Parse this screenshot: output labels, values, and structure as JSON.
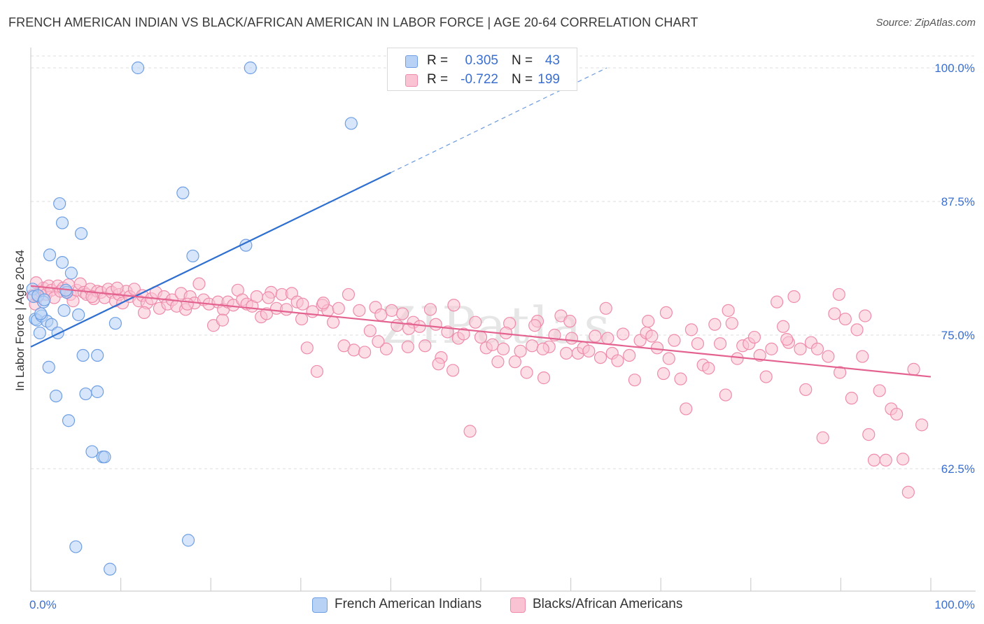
{
  "title": "FRENCH AMERICAN INDIAN VS BLACK/AFRICAN AMERICAN IN LABOR FORCE | AGE 20-64 CORRELATION CHART",
  "source": "Source: ZipAtlas.com",
  "watermark": "ZIPatlas",
  "colors": {
    "blue_fill": "#b7d2f5",
    "blue_stroke": "#6f9fe3",
    "blue_line": "#2e6fd0",
    "pink_fill": "#f9c3d3",
    "pink_stroke": "#ee8cab",
    "pink_line": "#e3628f",
    "tick_text": "#3a6fd1",
    "grid": "#dcdcdc"
  },
  "legend_top": {
    "rows": [
      {
        "r_label": "R =",
        "r_value": "0.305",
        "n_label": "N =",
        "n_value": "43",
        "color": "#b7d2f5",
        "border": "#6f9fe3"
      },
      {
        "r_label": "R =",
        "r_value": "-0.722",
        "n_label": "N =",
        "n_value": "199",
        "color": "#f9c3d3",
        "border": "#ee8cab"
      }
    ]
  },
  "legend_bottom": [
    {
      "label": "French American Indians",
      "color": "#b7d2f5",
      "border": "#6f9fe3"
    },
    {
      "label": "Blacks/African Americans",
      "color": "#f9c3d3",
      "border": "#ee8cab"
    }
  ],
  "chart_data": {
    "type": "scatter",
    "title": "FRENCH AMERICAN INDIAN VS BLACK/AFRICAN AMERICAN IN LABOR FORCE | AGE 20-64 CORRELATION CHART",
    "xlabel": "",
    "ylabel": "In Labor Force | Age 20-64",
    "xlim": [
      0,
      100
    ],
    "ylim": [
      50,
      101
    ],
    "x_tick_labels": [
      "0.0%",
      "100.0%"
    ],
    "y_ticks": [
      62.5,
      75.0,
      87.5,
      100.0
    ],
    "y_tick_labels": [
      "62.5%",
      "75.0%",
      "87.5%",
      "100.0%"
    ],
    "grid": true,
    "legend_placement": "top-center",
    "series": [
      {
        "name": "French American Indians",
        "r": 0.305,
        "n": 43,
        "trend": {
          "x0": 0,
          "y0": 73.9,
          "x1": 40,
          "y1": 90.2,
          "dash_to_x": 64,
          "dash_to_y": 100.0
        },
        "points": [
          [
            0.2,
            79.3
          ],
          [
            0.3,
            78.6
          ],
          [
            0.5,
            76.5
          ],
          [
            0.7,
            76.4
          ],
          [
            0.8,
            78.7
          ],
          [
            1.0,
            75.2
          ],
          [
            1.2,
            76.8
          ],
          [
            1.4,
            78.1
          ],
          [
            1.5,
            78.3
          ],
          [
            1.8,
            76.3
          ],
          [
            2.0,
            72.0
          ],
          [
            2.1,
            82.5
          ],
          [
            2.3,
            76.0
          ],
          [
            2.8,
            69.3
          ],
          [
            3.0,
            75.2
          ],
          [
            3.2,
            87.3
          ],
          [
            3.5,
            85.5
          ],
          [
            3.5,
            81.8
          ],
          [
            3.7,
            77.3
          ],
          [
            4.0,
            79.0
          ],
          [
            4.2,
            67.0
          ],
          [
            4.5,
            80.8
          ],
          [
            5.0,
            55.2
          ],
          [
            5.3,
            76.9
          ],
          [
            5.6,
            84.5
          ],
          [
            5.8,
            73.1
          ],
          [
            6.1,
            69.5
          ],
          [
            6.8,
            64.1
          ],
          [
            7.4,
            73.1
          ],
          [
            7.4,
            69.7
          ],
          [
            8.0,
            63.6
          ],
          [
            8.2,
            63.6
          ],
          [
            8.8,
            53.1
          ],
          [
            9.4,
            76.1
          ],
          [
            11.9,
            100.0
          ],
          [
            16.9,
            88.3
          ],
          [
            17.5,
            55.8
          ],
          [
            18.0,
            82.4
          ],
          [
            23.9,
            83.4
          ],
          [
            24.4,
            100.0
          ],
          [
            35.6,
            94.8
          ],
          [
            3.9,
            79.2
          ],
          [
            1.1,
            77.0
          ]
        ]
      },
      {
        "name": "Blacks/African Americans",
        "r": -0.722,
        "n": 199,
        "trend": {
          "x0": 0,
          "y0": 79.6,
          "x1": 100,
          "y1": 71.1
        },
        "points": [
          [
            0.2,
            78.7
          ],
          [
            0.5,
            77.9
          ],
          [
            0.8,
            78.6
          ],
          [
            1.1,
            79.1
          ],
          [
            1.4,
            79.4
          ],
          [
            1.7,
            78.8
          ],
          [
            2.0,
            79.6
          ],
          [
            2.3,
            79.2
          ],
          [
            2.6,
            78.5
          ],
          [
            3.0,
            79.6
          ],
          [
            3.3,
            79.1
          ],
          [
            3.6,
            79.4
          ],
          [
            4.0,
            79.0
          ],
          [
            4.4,
            78.8
          ],
          [
            4.7,
            78.2
          ],
          [
            5.1,
            79.2
          ],
          [
            5.5,
            79.8
          ],
          [
            5.9,
            79.0
          ],
          [
            6.2,
            78.8
          ],
          [
            6.6,
            79.3
          ],
          [
            7.0,
            78.4
          ],
          [
            7.4,
            79.1
          ],
          [
            7.8,
            79.0
          ],
          [
            8.2,
            78.5
          ],
          [
            8.6,
            79.3
          ],
          [
            9.0,
            79.0
          ],
          [
            9.4,
            78.2
          ],
          [
            9.8,
            78.8
          ],
          [
            10.2,
            78.0
          ],
          [
            10.6,
            79.1
          ],
          [
            11.0,
            78.6
          ],
          [
            11.5,
            79.3
          ],
          [
            12.0,
            78.2
          ],
          [
            12.4,
            78.7
          ],
          [
            12.9,
            78.0
          ],
          [
            13.4,
            78.4
          ],
          [
            13.9,
            79.0
          ],
          [
            14.3,
            77.5
          ],
          [
            14.8,
            78.6
          ],
          [
            15.2,
            77.9
          ],
          [
            15.7,
            78.3
          ],
          [
            16.2,
            77.7
          ],
          [
            16.7,
            78.9
          ],
          [
            17.2,
            77.4
          ],
          [
            17.7,
            78.6
          ],
          [
            18.2,
            78.0
          ],
          [
            18.7,
            79.8
          ],
          [
            19.2,
            78.3
          ],
          [
            19.8,
            77.9
          ],
          [
            20.3,
            75.9
          ],
          [
            20.8,
            78.1
          ],
          [
            21.4,
            77.4
          ],
          [
            21.9,
            78.1
          ],
          [
            22.5,
            77.8
          ],
          [
            23.0,
            79.2
          ],
          [
            23.5,
            78.3
          ],
          [
            24.0,
            77.9
          ],
          [
            24.6,
            77.7
          ],
          [
            25.1,
            78.6
          ],
          [
            25.6,
            76.7
          ],
          [
            26.2,
            77.0
          ],
          [
            26.7,
            79.0
          ],
          [
            27.3,
            77.5
          ],
          [
            27.9,
            78.8
          ],
          [
            28.4,
            77.4
          ],
          [
            29.0,
            78.9
          ],
          [
            29.6,
            78.1
          ],
          [
            30.1,
            76.5
          ],
          [
            30.7,
            73.8
          ],
          [
            31.3,
            77.2
          ],
          [
            31.8,
            71.6
          ],
          [
            32.4,
            77.8
          ],
          [
            33.0,
            77.3
          ],
          [
            33.6,
            76.2
          ],
          [
            34.2,
            77.5
          ],
          [
            34.8,
            74.0
          ],
          [
            35.3,
            78.8
          ],
          [
            35.9,
            73.6
          ],
          [
            36.5,
            77.3
          ],
          [
            37.1,
            73.4
          ],
          [
            37.7,
            75.4
          ],
          [
            38.3,
            77.6
          ],
          [
            38.9,
            76.9
          ],
          [
            39.5,
            73.7
          ],
          [
            40.1,
            77.3
          ],
          [
            40.7,
            75.9
          ],
          [
            41.3,
            77.0
          ],
          [
            41.9,
            73.9
          ],
          [
            42.5,
            76.2
          ],
          [
            43.2,
            75.8
          ],
          [
            43.8,
            74.0
          ],
          [
            44.4,
            77.4
          ],
          [
            45.0,
            76.0
          ],
          [
            45.6,
            72.9
          ],
          [
            46.3,
            75.3
          ],
          [
            46.9,
            71.7
          ],
          [
            47.5,
            74.7
          ],
          [
            48.1,
            75.1
          ],
          [
            48.8,
            66.0
          ],
          [
            49.4,
            76.2
          ],
          [
            50.0,
            74.8
          ],
          [
            50.6,
            73.8
          ],
          [
            51.3,
            74.1
          ],
          [
            51.9,
            72.5
          ],
          [
            52.5,
            73.7
          ],
          [
            53.2,
            76.1
          ],
          [
            53.8,
            72.5
          ],
          [
            54.4,
            73.5
          ],
          [
            55.1,
            71.5
          ],
          [
            55.7,
            74.0
          ],
          [
            56.3,
            76.3
          ],
          [
            57.0,
            71.0
          ],
          [
            57.6,
            73.9
          ],
          [
            58.2,
            75.0
          ],
          [
            58.9,
            76.8
          ],
          [
            59.5,
            73.3
          ],
          [
            60.1,
            74.7
          ],
          [
            60.8,
            73.3
          ],
          [
            61.4,
            73.8
          ],
          [
            62.0,
            73.5
          ],
          [
            62.7,
            74.9
          ],
          [
            63.3,
            72.9
          ],
          [
            63.9,
            77.5
          ],
          [
            64.6,
            73.3
          ],
          [
            65.2,
            72.6
          ],
          [
            65.8,
            75.1
          ],
          [
            66.5,
            73.1
          ],
          [
            67.1,
            70.8
          ],
          [
            67.7,
            74.5
          ],
          [
            68.4,
            75.2
          ],
          [
            69.0,
            74.9
          ],
          [
            69.6,
            73.8
          ],
          [
            70.3,
            71.4
          ],
          [
            70.9,
            72.8
          ],
          [
            71.5,
            74.5
          ],
          [
            72.2,
            70.9
          ],
          [
            72.8,
            68.1
          ],
          [
            73.4,
            75.5
          ],
          [
            74.1,
            74.2
          ],
          [
            74.7,
            72.2
          ],
          [
            75.3,
            71.9
          ],
          [
            76.0,
            76.0
          ],
          [
            76.6,
            74.2
          ],
          [
            77.2,
            69.4
          ],
          [
            77.9,
            76.1
          ],
          [
            78.5,
            72.8
          ],
          [
            79.1,
            74.0
          ],
          [
            79.8,
            74.2
          ],
          [
            80.4,
            74.8
          ],
          [
            81.0,
            73.1
          ],
          [
            81.7,
            71.1
          ],
          [
            82.3,
            73.7
          ],
          [
            82.9,
            78.1
          ],
          [
            83.6,
            75.8
          ],
          [
            84.2,
            74.3
          ],
          [
            84.8,
            78.6
          ],
          [
            85.5,
            73.7
          ],
          [
            86.1,
            69.9
          ],
          [
            86.7,
            74.3
          ],
          [
            87.4,
            73.7
          ],
          [
            88.0,
            65.4
          ],
          [
            88.6,
            73.0
          ],
          [
            89.3,
            77.0
          ],
          [
            89.9,
            71.5
          ],
          [
            90.5,
            76.5
          ],
          [
            91.2,
            69.1
          ],
          [
            91.8,
            75.5
          ],
          [
            92.4,
            73.0
          ],
          [
            93.1,
            65.7
          ],
          [
            93.7,
            63.3
          ],
          [
            94.3,
            69.8
          ],
          [
            95.0,
            63.3
          ],
          [
            95.6,
            68.1
          ],
          [
            96.2,
            67.6
          ],
          [
            96.9,
            63.4
          ],
          [
            97.5,
            60.3
          ],
          [
            98.1,
            71.8
          ],
          [
            99.0,
            66.6
          ],
          [
            70.6,
            77.1
          ],
          [
            68.6,
            76.3
          ],
          [
            89.8,
            78.8
          ],
          [
            77.5,
            77.3
          ],
          [
            52.8,
            75.2
          ],
          [
            47.0,
            77.8
          ],
          [
            56.9,
            73.7
          ],
          [
            64.1,
            74.7
          ],
          [
            59.9,
            76.3
          ],
          [
            45.3,
            72.3
          ],
          [
            38.6,
            74.4
          ],
          [
            42.0,
            75.6
          ],
          [
            30.2,
            77.9
          ],
          [
            26.4,
            78.5
          ],
          [
            21.3,
            76.4
          ],
          [
            17.4,
            77.9
          ],
          [
            12.6,
            77.1
          ],
          [
            9.6,
            79.4
          ],
          [
            6.8,
            78.6
          ],
          [
            4.2,
            79.7
          ],
          [
            56.0,
            75.9
          ],
          [
            84.0,
            74.6
          ],
          [
            92.7,
            76.8
          ],
          [
            32.5,
            78.0
          ],
          [
            0.6,
            79.9
          ]
        ]
      }
    ]
  }
}
